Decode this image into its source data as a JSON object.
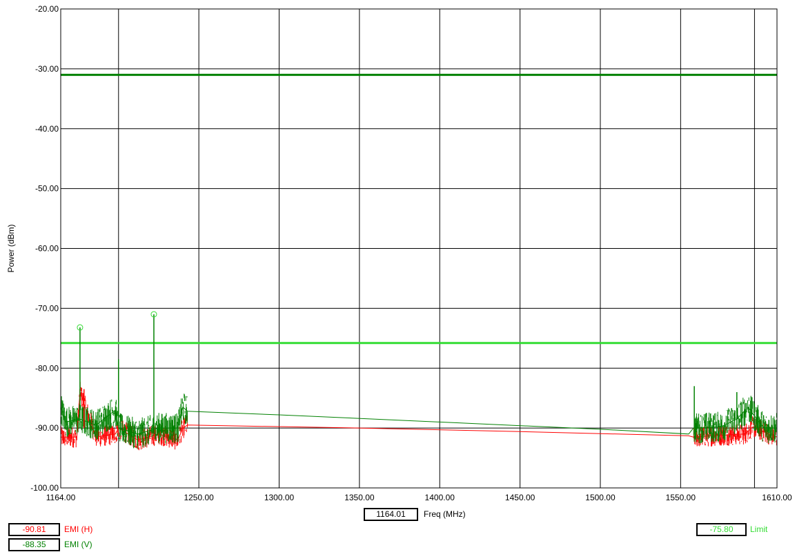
{
  "chart_data": {
    "type": "line",
    "xlabel": "Freq (MHz)",
    "ylabel": "Power (dBm)",
    "xlim": [
      1164.0,
      1610.0
    ],
    "ylim": [
      -100.0,
      -20.0
    ],
    "x_ticks": [
      "1164.00",
      "1250.00",
      "1300.00",
      "1350.00",
      "1400.00",
      "1450.00",
      "1500.00",
      "1550.00",
      "1610.00"
    ],
    "y_ticks": [
      "-20.00",
      "-30.00",
      "-40.00",
      "-50.00",
      "-60.00",
      "-70.00",
      "-80.00",
      "-90.00",
      "-100.00"
    ],
    "grid": true,
    "reference_lines": [
      {
        "y": -31.0,
        "color": "#008000"
      },
      {
        "y": -75.8,
        "color": "#33dd33"
      }
    ],
    "series": [
      {
        "name": "EMI (H)",
        "color": "#ff0000",
        "x": [
          1164,
          1174,
          1176,
          1186,
          1198,
          1200,
          1212,
          1225,
          1237,
          1240,
          1243,
          1350,
          1450,
          1555,
          1558,
          1575,
          1590,
          1595,
          1605,
          1610
        ],
        "y": [
          -91.5,
          -91.5,
          -84.0,
          -91.5,
          -91.0,
          -90.0,
          -92.0,
          -91.0,
          -92.0,
          -90.0,
          -89.5,
          -90.0,
          -90.6,
          -91.3,
          -91.5,
          -91.2,
          -91.0,
          -89.8,
          -91.0,
          -91.5
        ]
      },
      {
        "name": "EMI (V)",
        "color": "#008000",
        "x": [
          1164,
          1167,
          1176,
          1186,
          1198,
          1200,
          1212,
          1225,
          1237,
          1240,
          1243,
          1300,
          1400,
          1500,
          1555,
          1558,
          1575,
          1585,
          1592,
          1596,
          1602,
          1610
        ],
        "y": [
          -86.5,
          -89.0,
          -88.5,
          -89.5,
          -87.0,
          -90.0,
          -91.0,
          -90.0,
          -90.0,
          -86.5,
          -87.2,
          -87.8,
          -89.0,
          -90.2,
          -91.0,
          -90.0,
          -89.8,
          -88.5,
          -86.5,
          -88.0,
          -90.0,
          -90.0
        ]
      }
    ],
    "spikes": [
      {
        "x": 1176.0,
        "y": -73.2,
        "marker": true
      },
      {
        "x": 1222.0,
        "y": -71.0,
        "marker": true
      },
      {
        "x": 1200.0,
        "y": -78.5,
        "marker": false
      },
      {
        "x": 1178.5,
        "y": -83.5,
        "marker": false
      },
      {
        "x": 1558.5,
        "y": -83.0,
        "marker": false
      },
      {
        "x": 1585.0,
        "y": -84.0,
        "marker": false
      }
    ],
    "dark_gridline_x": [
      1200.0,
      1596.0
    ]
  },
  "readouts": {
    "freq_value": "1164.01",
    "emi_h_value": "-90.81",
    "emi_h_label": "EMI (H)",
    "emi_v_value": "-88.35",
    "emi_v_label": "EMI (V)",
    "limit_value": "-75.80",
    "limit_label": "Limit"
  },
  "colors": {
    "emi_h": "#ff0000",
    "emi_v": "#008000",
    "limit": "#33dd33",
    "upper_limit": "#008000"
  }
}
